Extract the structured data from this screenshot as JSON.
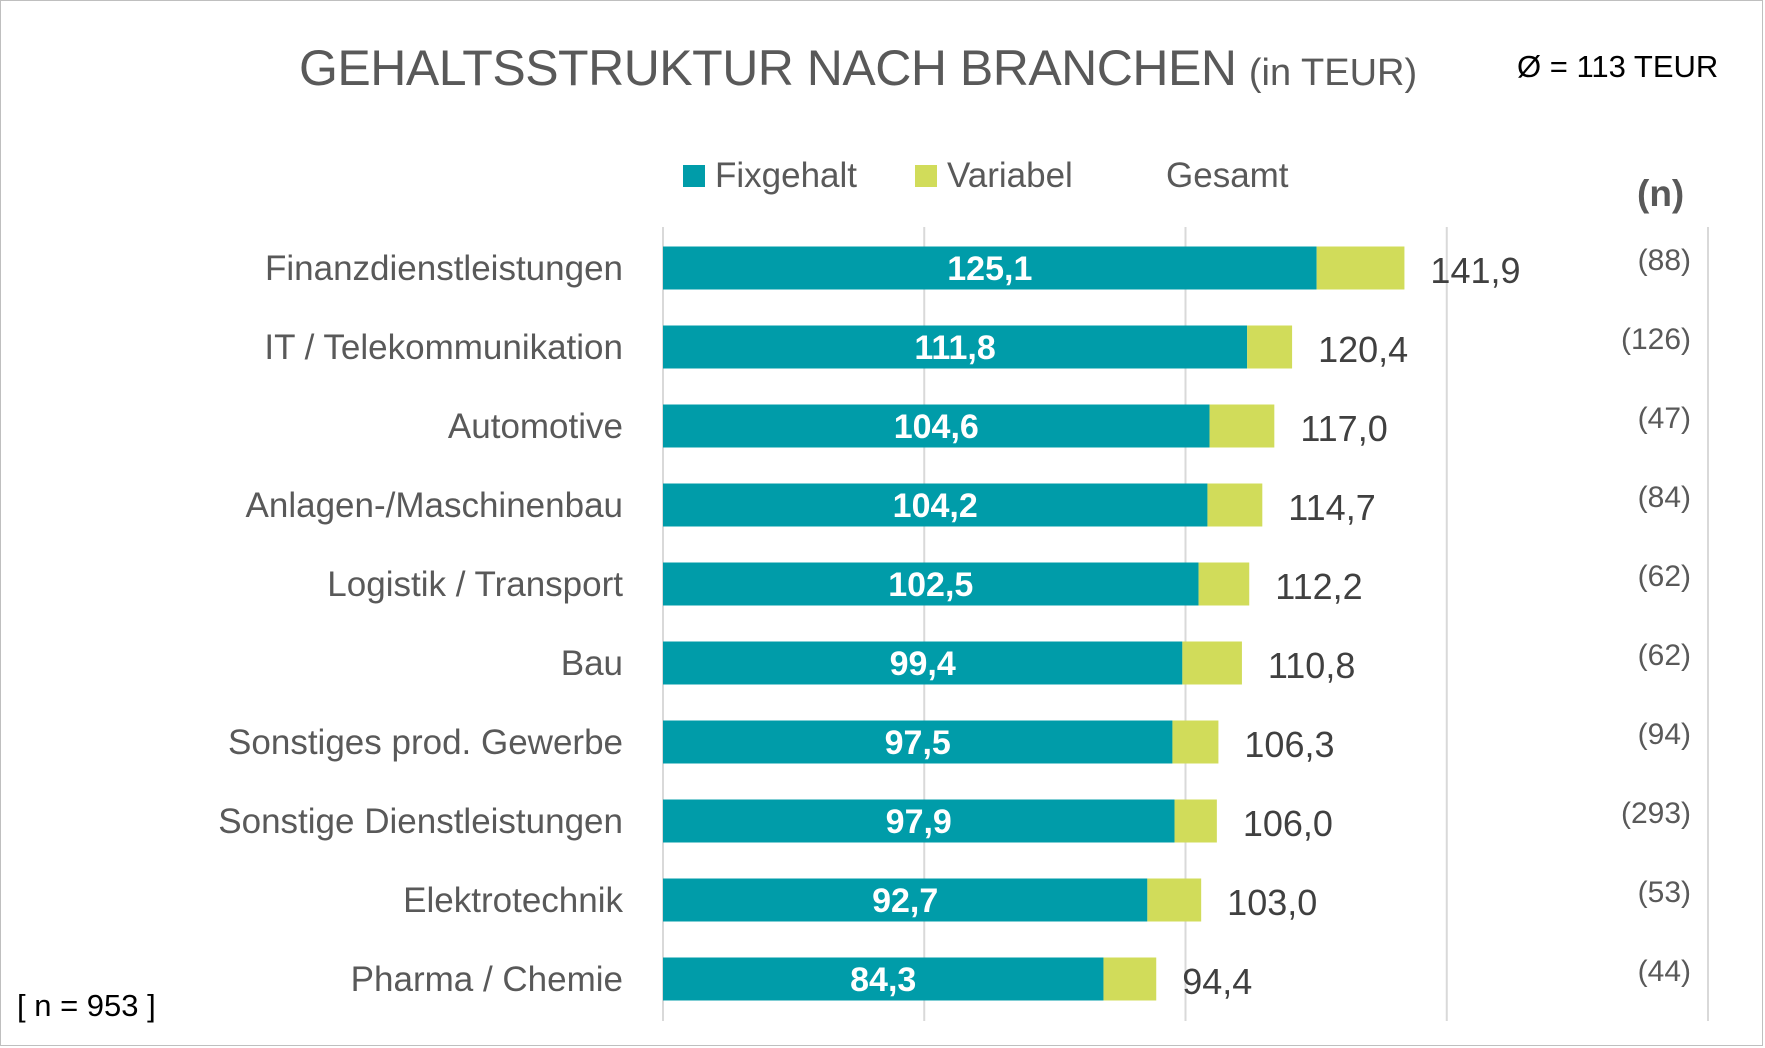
{
  "title": "GEHALTSSTRUKTUR NACH BRANCHEN",
  "title_unit": "(in TEUR)",
  "average_note": "Ø = 113 TEUR",
  "sample_note": "[ n = 953 ]",
  "n_header": "(n)",
  "legend": {
    "fix_label": "Fixgehalt",
    "var_label": "Variabel",
    "total_label": "Gesamt"
  },
  "colors": {
    "fix": "#009ca9",
    "variable": "#d1dc5a",
    "grid": "#d9d9d9"
  },
  "chart_data": {
    "type": "bar",
    "orientation": "horizontal",
    "stacked": true,
    "categories": [
      "Finanzdienstleistungen",
      "IT / Telekommunikation",
      "Automotive",
      "Anlagen-/Maschinenbau",
      "Logistik / Transport",
      "Bau",
      "Sonstiges prod. Gewerbe",
      "Sonstige Dienstleistungen",
      "Elektrotechnik",
      "Pharma / Chemie"
    ],
    "fix_labels": [
      "125,1",
      "111,8",
      "104,6",
      "104,2",
      "102,5",
      "99,4",
      "97,5",
      "97,9",
      "92,7",
      "84,3"
    ],
    "total_labels": [
      "141,9",
      "120,4",
      "117,0",
      "114,7",
      "112,2",
      "110,8",
      "106,3",
      "106,0",
      "103,0",
      "94,4"
    ],
    "n_labels": [
      "(88)",
      "(126)",
      "(47)",
      "(84)",
      "(62)",
      "(62)",
      "(94)",
      "(293)",
      "(53)",
      "(44)"
    ],
    "series": [
      {
        "name": "Fixgehalt",
        "values": [
          125.1,
          111.8,
          104.6,
          104.2,
          102.5,
          99.4,
          97.5,
          97.9,
          92.7,
          84.3
        ]
      },
      {
        "name": "Variabel",
        "values": [
          16.8,
          8.6,
          12.4,
          10.5,
          9.7,
          11.4,
          8.8,
          8.1,
          10.3,
          10.1
        ]
      }
    ],
    "totals": [
      141.9,
      120.4,
      117.0,
      114.7,
      112.2,
      110.8,
      106.3,
      106.0,
      103.0,
      94.4
    ],
    "xlim": [
      0,
      200
    ],
    "grid": true,
    "legend_position": "top"
  }
}
